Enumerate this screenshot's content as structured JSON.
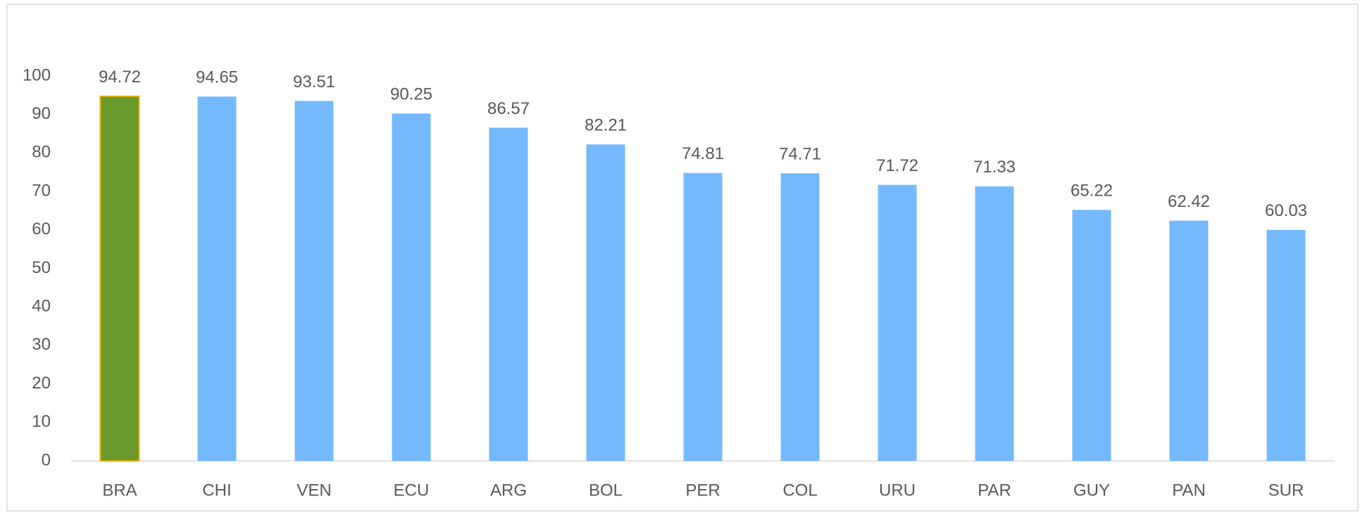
{
  "chart_data": {
    "type": "bar",
    "categories": [
      "BRA",
      "CHI",
      "VEN",
      "ECU",
      "ARG",
      "BOL",
      "PER",
      "COL",
      "URU",
      "PAR",
      "GUY",
      "PAN",
      "SUR"
    ],
    "values": [
      94.72,
      94.65,
      93.51,
      90.25,
      86.57,
      82.21,
      74.81,
      74.71,
      71.72,
      71.33,
      65.22,
      62.42,
      60.03
    ],
    "colors": [
      "#6a992e",
      "#75b9fd",
      "#75b9fd",
      "#75b9fd",
      "#75b9fd",
      "#75b9fd",
      "#75b9fd",
      "#75b9fd",
      "#75b9fd",
      "#75b9fd",
      "#75b9fd",
      "#75b9fd",
      "#75b9fd"
    ],
    "edgecolors": [
      "#e3b300",
      null,
      null,
      null,
      null,
      null,
      null,
      null,
      null,
      null,
      null,
      null,
      null
    ],
    "ylim": [
      0,
      100
    ],
    "yticks": [
      0,
      10,
      20,
      30,
      40,
      50,
      60,
      70,
      80,
      90,
      100
    ],
    "grid": false
  }
}
